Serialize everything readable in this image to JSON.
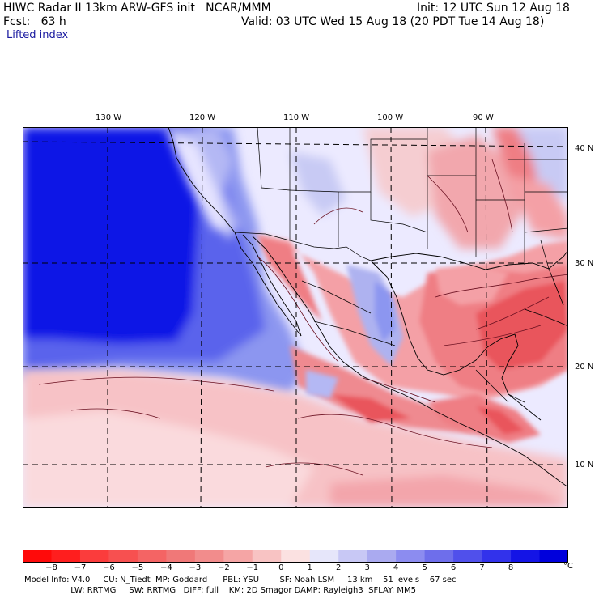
{
  "header": {
    "line1_left": "HIWC Radar II 13km ARW-GFS init   NCAR/MMM",
    "line1_right": "Init: 12 UTC Sun 12 Aug 18",
    "line2_left": "Fcst:   63 h",
    "line2_right": "Valid: 03 UTC Wed 15 Aug 18 (20 PDT Tue 14 Aug 18)",
    "field": "Lifted index"
  },
  "map": {
    "lon_labels": [
      "130 W",
      "120 W",
      "110 W",
      "100 W",
      "90 W"
    ],
    "lat_labels": [
      "40 N",
      "30 N",
      "20 N",
      "10 N"
    ],
    "colors": {
      "ocean_deep_blue": "#0a14e6",
      "stable_blue": "#8c96f0",
      "neutral": "#f4f4ff",
      "unstable_pink": "#f7c2c6",
      "unstable_red": "#ef6e74"
    }
  },
  "colorbar": {
    "labels": [
      "−8",
      "−7",
      "−6",
      "−5",
      "−4",
      "−3",
      "−2",
      "−1",
      "0",
      "1",
      "2",
      "3",
      "4",
      "5",
      "6",
      "7",
      "8"
    ],
    "unit": "°C",
    "colors": [
      "#ff0a0a",
      "#ff1e1e",
      "#fb3c3c",
      "#f75050",
      "#f46464",
      "#f07878",
      "#f28c8c",
      "#f5a5a5",
      "#f8c3c3",
      "#fbe1e1",
      "#e6e6fa",
      "#c8c8f5",
      "#aaaaf0",
      "#8c8cf0",
      "#6e6eeb",
      "#5050eb",
      "#3232eb",
      "#1414e6",
      "#0000dc"
    ]
  },
  "footer": {
    "line1": "Model Info: V4.0     CU: N_Tiedt  MP: Goddard      PBL: YSU        SF: Noah LSM     13 km    51 levels    67 sec",
    "line2": "                  LW: RRTMG     SW: RRTMG   DIFF: full    KM: 2D Smagor DAMP: Rayleigh3  SFLAY: MM5"
  }
}
